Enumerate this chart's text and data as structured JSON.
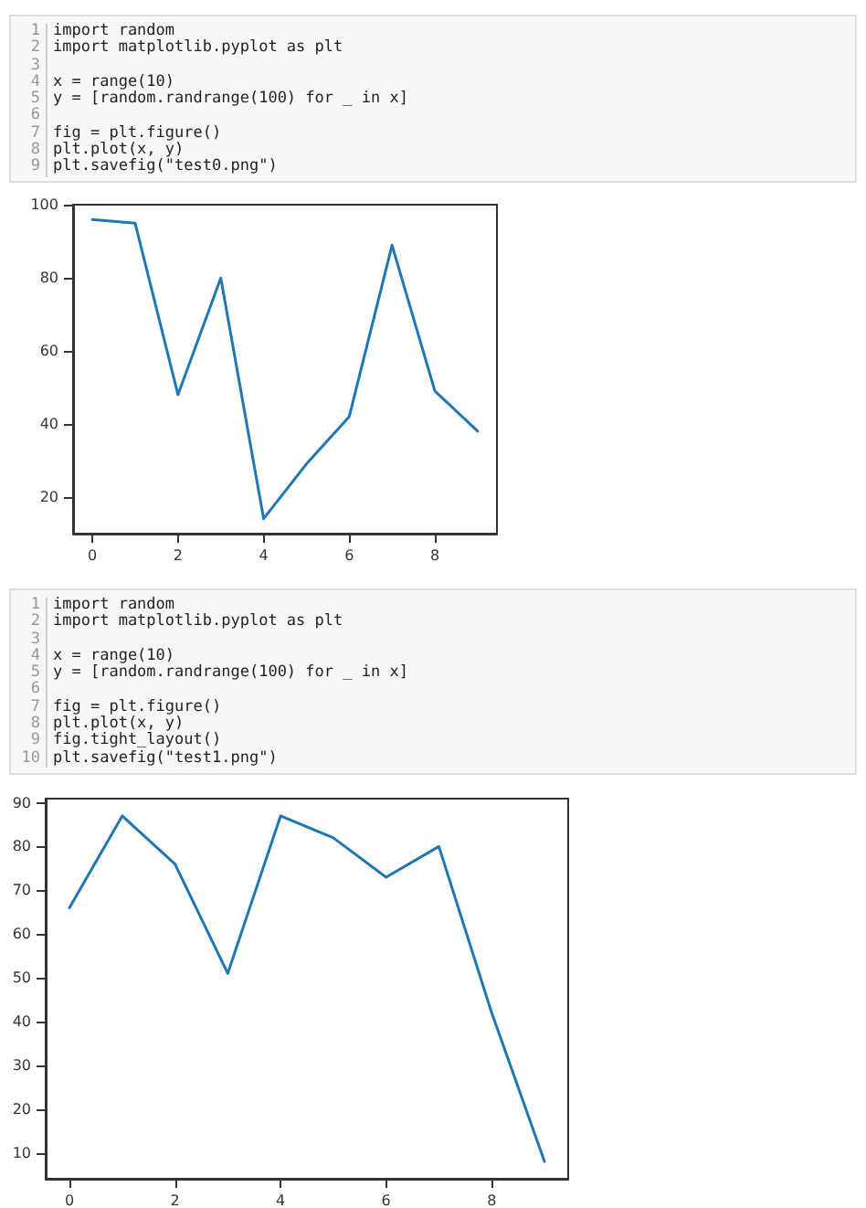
{
  "chart_data": [
    {
      "type": "line",
      "annotations": [
        "1 import random",
        "2 import matplotlib.pyplot as plt",
        "3",
        "4 x = range(10)",
        "5 y = [random.randrange(100) for _ in x]",
        "6",
        "7 fig = plt.figure()",
        "8 plt.plot(x, y)",
        "9 plt.savefig(\"test0.png\")"
      ],
      "x": [
        0,
        1,
        2,
        3,
        4,
        5,
        6,
        7,
        8,
        9
      ],
      "series": [
        {
          "color": "#1f77b4",
          "values": [
            96,
            95,
            48,
            80,
            14,
            29,
            42,
            89,
            49,
            38
          ]
        }
      ],
      "xlim": [
        -0.45,
        9.45
      ],
      "xticks": [
        0,
        2,
        4,
        6,
        8
      ],
      "ylim": [
        9.9,
        100.1
      ],
      "yticks": [
        20,
        40,
        60,
        80,
        100
      ],
      "marker": "none",
      "line_style": "solid"
    },
    {
      "type": "line",
      "annotations": [
        "1 import random",
        "2 import matplotlib.pyplot as plt",
        "3",
        "4 x = range(10)",
        "5 y = [random.randrange(100) for _ in x]",
        "6",
        "7 fig = plt.figure()",
        "8 plt.plot(x, y)",
        "9 fig.tight_layout()",
        "10 plt.savefig(\"test1.png\")"
      ],
      "x": [
        0,
        1,
        2,
        3,
        4,
        5,
        6,
        7,
        8,
        9
      ],
      "series": [
        {
          "color": "#1f77b4",
          "values": [
            66,
            87,
            76,
            51,
            87,
            82,
            73,
            80,
            42,
            8
          ]
        }
      ],
      "xlim": [
        -0.45,
        9.45
      ],
      "xticks": [
        0,
        2,
        4,
        6,
        8
      ],
      "ylim": [
        4.05,
        90.95
      ],
      "yticks": [
        10,
        20,
        30,
        40,
        50,
        60,
        70,
        80,
        90
      ],
      "marker": "none",
      "line_style": "solid"
    }
  ]
}
